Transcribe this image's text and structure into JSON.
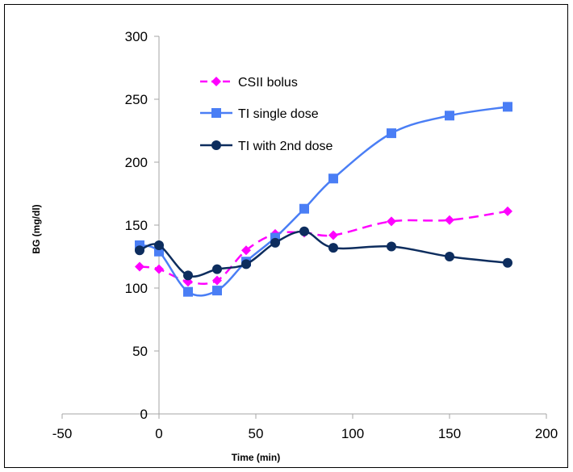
{
  "chart_data": {
    "type": "line",
    "title": "",
    "xlabel": "Time (min)",
    "ylabel": "BG (mg/dl)",
    "xlim": [
      -50,
      200
    ],
    "ylim": [
      0,
      300
    ],
    "x_ticks": [
      -50,
      0,
      50,
      100,
      150,
      200
    ],
    "y_ticks": [
      0,
      50,
      100,
      150,
      200,
      250,
      300
    ],
    "x_tick_labels": [
      "-50",
      "0",
      "50",
      "100",
      "150",
      "200"
    ],
    "y_tick_labels": [
      "0",
      "50",
      "100",
      "150",
      "200",
      "250",
      "300"
    ],
    "grid": false,
    "legend_position": "upper-center",
    "series": [
      {
        "name": "CSII bolus",
        "color": "#ff00ff",
        "marker": "diamond",
        "line_style": "dashed",
        "x": [
          -10,
          0,
          15,
          30,
          45,
          60,
          75,
          90,
          120,
          150,
          180
        ],
        "y": [
          117,
          115,
          105,
          106,
          130,
          143,
          144,
          142,
          153,
          154,
          161
        ]
      },
      {
        "name": "TI single dose",
        "color": "#4a7ef5",
        "marker": "square",
        "line_style": "solid",
        "x": [
          -10,
          0,
          15,
          30,
          45,
          60,
          75,
          90,
          120,
          150,
          180
        ],
        "y": [
          134,
          129,
          97,
          98,
          121,
          140,
          163,
          187,
          223,
          237,
          244
        ]
      },
      {
        "name": "TI with 2nd dose",
        "color": "#0d2d5e",
        "marker": "circle",
        "line_style": "solid",
        "x": [
          -10,
          0,
          15,
          30,
          45,
          60,
          75,
          90,
          120,
          150,
          180
        ],
        "y": [
          130,
          134,
          110,
          115,
          119,
          136,
          145,
          132,
          133,
          125,
          120
        ]
      }
    ]
  }
}
